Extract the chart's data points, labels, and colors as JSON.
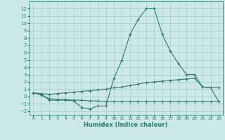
{
  "xlabel": "Humidex (Indice chaleur)",
  "x": [
    0,
    1,
    2,
    3,
    4,
    5,
    6,
    7,
    8,
    9,
    10,
    11,
    12,
    13,
    14,
    15,
    16,
    17,
    18,
    19,
    20,
    21,
    22,
    23
  ],
  "line1": [
    0.5,
    0.3,
    -0.5,
    -0.5,
    -0.5,
    -0.6,
    -1.5,
    -1.7,
    -1.3,
    -1.3,
    2.5,
    5.0,
    8.5,
    10.5,
    12.0,
    12.0,
    8.5,
    6.2,
    4.5,
    3.0,
    3.0,
    1.3,
    1.2,
    -0.7
  ],
  "line2": [
    0.5,
    0.2,
    -0.3,
    -0.4,
    -0.4,
    -0.5,
    -0.5,
    -0.6,
    -0.6,
    -0.7,
    -0.7,
    -0.7,
    -0.7,
    -0.7,
    -0.7,
    -0.7,
    -0.7,
    -0.7,
    -0.7,
    -0.7,
    -0.7,
    -0.7,
    -0.7,
    -0.7
  ],
  "line3": [
    0.5,
    0.4,
    0.3,
    0.4,
    0.5,
    0.6,
    0.7,
    0.8,
    0.9,
    1.0,
    1.2,
    1.3,
    1.5,
    1.7,
    1.9,
    2.0,
    2.1,
    2.2,
    2.3,
    2.4,
    2.5,
    1.3,
    1.2,
    1.2
  ],
  "color": "#2e7d6e",
  "bg_color": "#cce8e8",
  "grid_color": "#aacccc",
  "ylim": [
    -2.5,
    13.0
  ],
  "yticks": [
    -2,
    -1,
    0,
    1,
    2,
    3,
    4,
    5,
    6,
    7,
    8,
    9,
    10,
    11,
    12
  ],
  "marker": "+"
}
